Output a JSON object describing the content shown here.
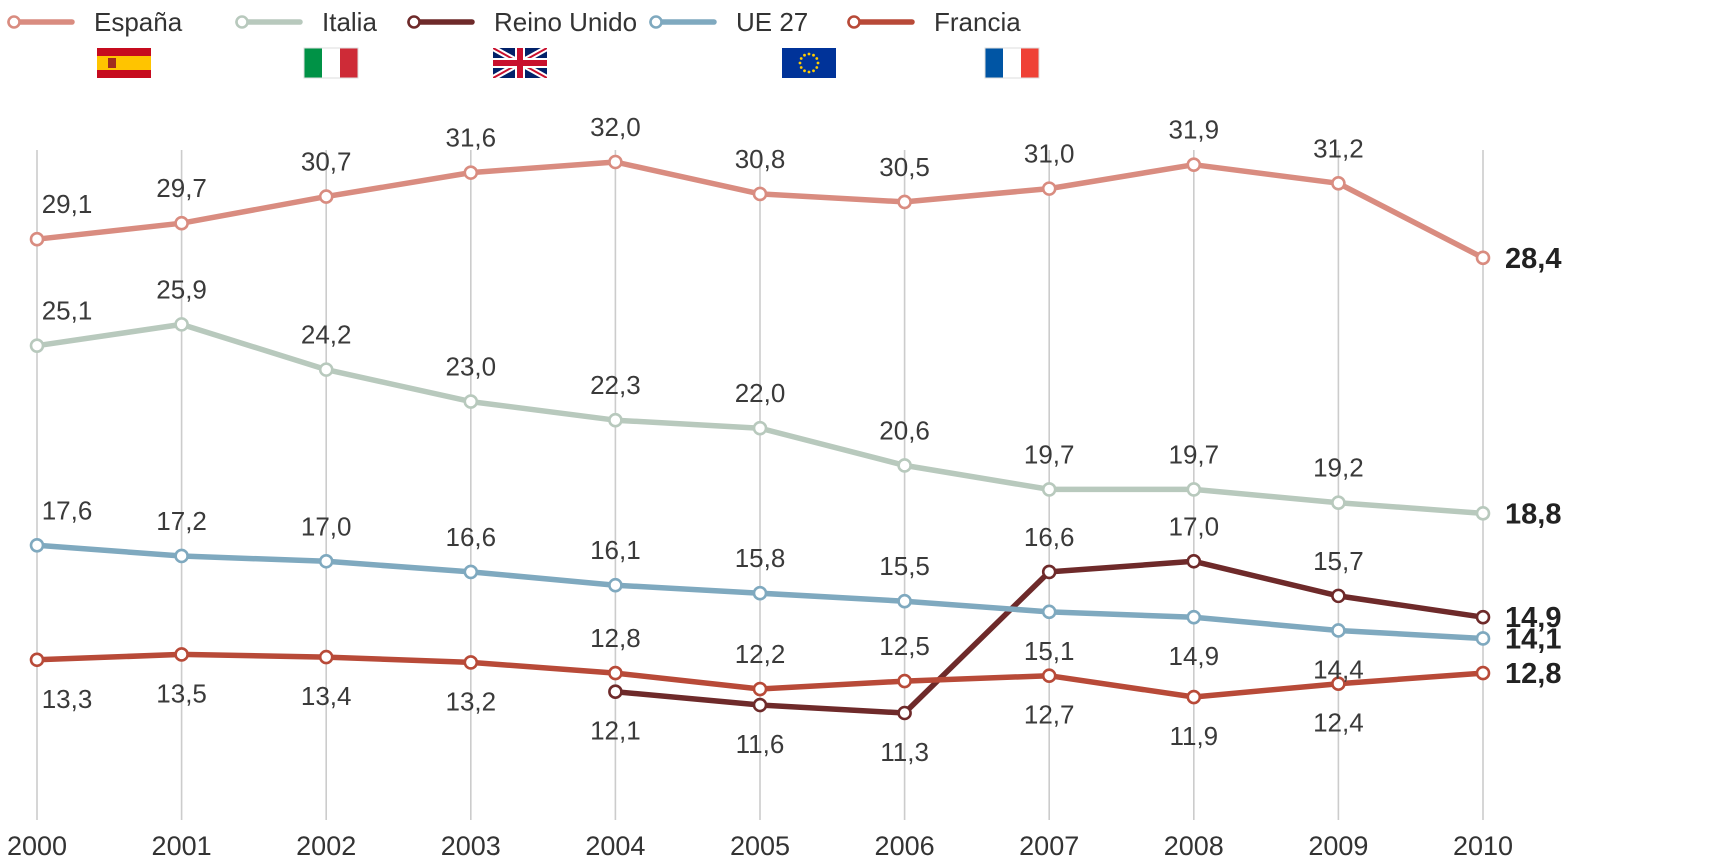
{
  "chart_data": {
    "type": "line",
    "x": [
      "2000",
      "2001",
      "2002",
      "2003",
      "2004",
      "2005",
      "2006",
      "2007",
      "2008",
      "2009",
      "2010"
    ],
    "ylim": [
      0,
      34
    ],
    "grid": "vertical",
    "legend": "top",
    "series": [
      {
        "name": "España",
        "color": "#d98c80",
        "flag": "spain-flag-icon",
        "values": [
          29.1,
          29.7,
          30.7,
          31.6,
          32.0,
          30.8,
          30.5,
          31.0,
          31.9,
          31.2,
          28.4
        ],
        "labels": [
          "29,1",
          "29,7",
          "30,7",
          "31,6",
          "32,0",
          "30,8",
          "30,5",
          "31,0",
          "31,9",
          "31,2",
          "28,4"
        ],
        "label_pos": [
          "above",
          "above",
          "above",
          "above",
          "above",
          "above",
          "above",
          "above",
          "above",
          "above",
          "end"
        ]
      },
      {
        "name": "Italia",
        "color": "#b8c9bd",
        "flag": "italy-flag-icon",
        "values": [
          25.1,
          25.9,
          24.2,
          23.0,
          22.3,
          22.0,
          20.6,
          19.7,
          19.7,
          19.2,
          18.8
        ],
        "labels": [
          "25,1",
          "25,9",
          "24,2",
          "23,0",
          "22,3",
          "22,0",
          "20,6",
          "19,7",
          "19,7",
          "19,2",
          "18,8"
        ],
        "label_pos": [
          "above",
          "above",
          "above",
          "above",
          "above",
          "above",
          "above",
          "above",
          "above",
          "above",
          "end"
        ]
      },
      {
        "name": "Reino Unido",
        "color": "#6e2a2a",
        "flag": "uk-flag-icon",
        "values": [
          null,
          null,
          null,
          null,
          12.1,
          11.6,
          11.3,
          16.6,
          17.0,
          15.7,
          14.9
        ],
        "labels": [
          "",
          "",
          "",
          "",
          "12,1",
          "11,6",
          "11,3",
          "16,6",
          "17,0",
          "15,7",
          "14,9"
        ],
        "label_pos": [
          "",
          "",
          "",
          "",
          "below",
          "below",
          "below",
          "above",
          "above",
          "above",
          "end"
        ]
      },
      {
        "name": "UE 27",
        "color": "#7fa9bf",
        "flag": "eu-flag-icon",
        "values": [
          17.6,
          17.2,
          17.0,
          16.6,
          16.1,
          15.8,
          15.5,
          15.1,
          14.9,
          14.4,
          14.1
        ],
        "labels": [
          "17,6",
          "17,2",
          "17,0",
          "16,6",
          "16,1",
          "15,8",
          "15,5",
          "15,1",
          "14,9",
          "14,4",
          "14,1"
        ],
        "label_pos": [
          "above",
          "above",
          "above",
          "above",
          "above",
          "above",
          "above",
          "below",
          "below",
          "below",
          "end"
        ]
      },
      {
        "name": "Francia",
        "color": "#b84a38",
        "flag": "france-flag-icon",
        "values": [
          13.3,
          13.5,
          13.4,
          13.2,
          12.8,
          12.2,
          12.5,
          12.7,
          11.9,
          12.4,
          12.8
        ],
        "labels": [
          "13,3",
          "13,5",
          "13,4",
          "13,2",
          "12,8",
          "12,2",
          "12,5",
          "12,7",
          "11,9",
          "12,4",
          "12,8"
        ],
        "label_pos": [
          "below",
          "below",
          "below",
          "below",
          "above",
          "above",
          "above",
          "below",
          "below",
          "below",
          "end"
        ]
      }
    ]
  }
}
